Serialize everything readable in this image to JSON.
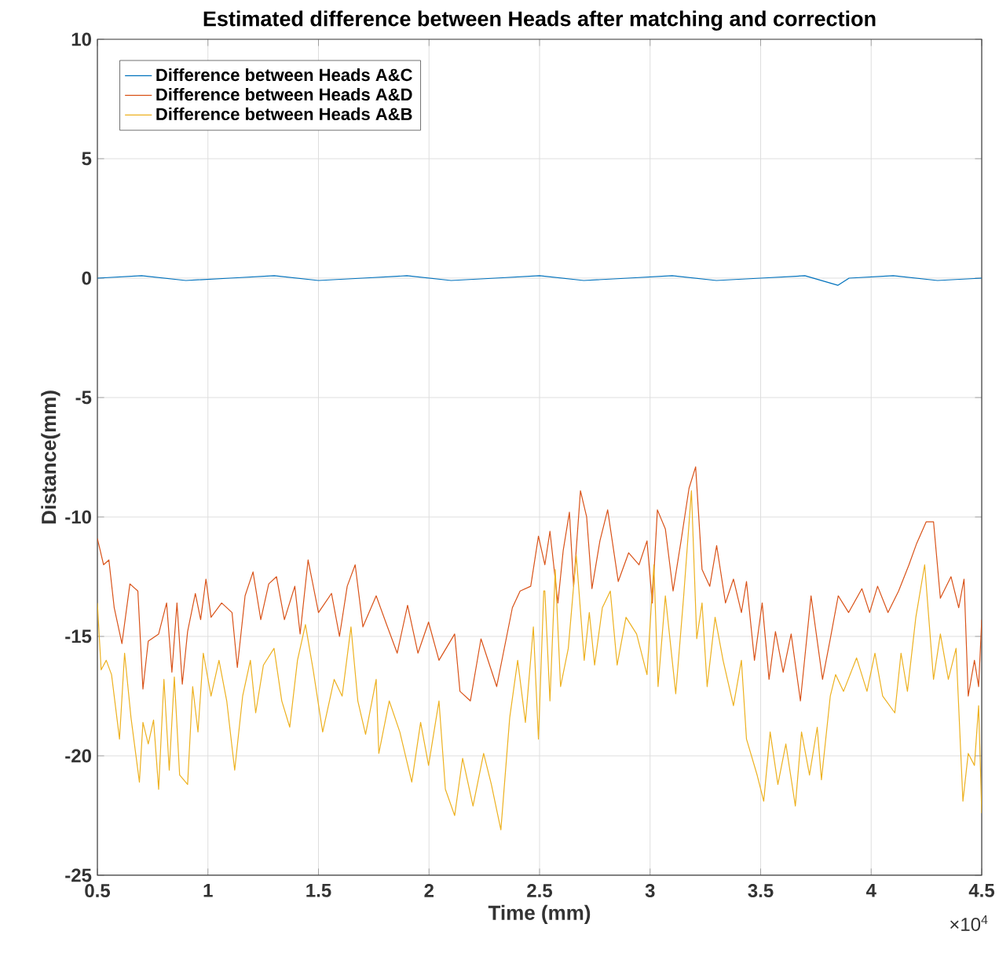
{
  "chart_data": {
    "type": "line",
    "title": "Estimated difference between Heads after matching and correction",
    "xlabel": "Time (mm)",
    "ylabel": "Distance(mm)",
    "xlim": [
      0.5,
      4.5
    ],
    "ylim": [
      -25,
      10
    ],
    "xticks": [
      0.5,
      1,
      1.5,
      2,
      2.5,
      3,
      3.5,
      4,
      4.5
    ],
    "yticks": [
      -25,
      -20,
      -15,
      -10,
      -5,
      0,
      5,
      10
    ],
    "annotations": [
      "×10$^{4}$"
    ],
    "grid": true,
    "legend": "top left",
    "marker": "none",
    "line_style": "solid",
    "series": [
      {
        "name": "Difference between Heads A&C",
        "color": "#0072bd",
        "x": [
          0.5,
          0.7,
          0.9,
          1.1,
          1.3,
          1.5,
          1.7,
          1.9,
          2.1,
          2.3,
          2.5,
          2.7,
          2.9,
          3.1,
          3.3,
          3.5,
          3.7,
          3.85,
          3.9,
          4.1,
          4.3,
          4.5
        ],
        "values": [
          0.0,
          0.1,
          -0.1,
          0.0,
          0.1,
          -0.1,
          0.0,
          0.1,
          -0.1,
          0.0,
          0.1,
          -0.1,
          0.0,
          0.1,
          -0.1,
          0.0,
          0.1,
          -0.3,
          0.0,
          0.1,
          -0.1,
          0.0
        ]
      },
      {
        "name": "Difference between Heads A&D",
        "color": "#d95319",
        "x": [
          0.5,
          0.528,
          0.552,
          0.576,
          0.611,
          0.647,
          0.683,
          0.706,
          0.73,
          0.777,
          0.813,
          0.837,
          0.86,
          0.884,
          0.908,
          0.943,
          0.967,
          0.991,
          1.014,
          1.062,
          1.109,
          1.133,
          1.168,
          1.204,
          1.239,
          1.275,
          1.31,
          1.346,
          1.393,
          1.417,
          1.453,
          1.5,
          1.559,
          1.595,
          1.63,
          1.666,
          1.701,
          1.761,
          1.808,
          1.856,
          1.903,
          1.95,
          1.998,
          2.045,
          2.116,
          2.14,
          2.187,
          2.235,
          2.306,
          2.377,
          2.412,
          2.46,
          2.495,
          2.519,
          2.524,
          2.547,
          2.583,
          2.607,
          2.635,
          2.654,
          2.685,
          2.713,
          2.737,
          2.773,
          2.808,
          2.856,
          2.903,
          2.95,
          2.986,
          3.01,
          3.033,
          3.069,
          3.104,
          3.14,
          3.176,
          3.206,
          3.235,
          3.27,
          3.301,
          3.341,
          3.377,
          3.413,
          3.436,
          3.472,
          3.507,
          3.538,
          3.567,
          3.602,
          3.638,
          3.68,
          3.728,
          3.78,
          3.815,
          3.851,
          3.898,
          3.958,
          3.993,
          4.029,
          4.076,
          4.124,
          4.171,
          4.206,
          4.249,
          4.282,
          4.313,
          4.361,
          4.396,
          4.42,
          4.439,
          4.467,
          4.486,
          4.5
        ],
        "values": [
          -10.9,
          -12.0,
          -11.8,
          -13.8,
          -15.3,
          -12.8,
          -13.1,
          -17.2,
          -15.2,
          -14.9,
          -13.6,
          -16.5,
          -13.6,
          -17.0,
          -14.8,
          -13.2,
          -14.3,
          -12.6,
          -14.2,
          -13.6,
          -14.0,
          -16.3,
          -13.3,
          -12.3,
          -14.3,
          -12.8,
          -12.5,
          -14.3,
          -12.9,
          -14.9,
          -11.8,
          -14.0,
          -13.2,
          -15.0,
          -12.9,
          -12.0,
          -14.6,
          -13.3,
          -14.5,
          -15.7,
          -13.7,
          -15.7,
          -14.4,
          -16.0,
          -14.9,
          -17.3,
          -17.7,
          -15.1,
          -17.1,
          -13.8,
          -13.1,
          -12.9,
          -10.8,
          -11.8,
          -12.0,
          -10.6,
          -13.6,
          -11.4,
          -9.8,
          -12.9,
          -8.9,
          -10.0,
          -13.0,
          -11.0,
          -9.7,
          -12.7,
          -11.5,
          -12.0,
          -11.0,
          -13.6,
          -9.7,
          -10.5,
          -13.1,
          -11.0,
          -8.8,
          -7.9,
          -12.2,
          -12.9,
          -11.2,
          -13.6,
          -12.6,
          -14.0,
          -12.7,
          -16.0,
          -13.6,
          -16.8,
          -14.8,
          -16.5,
          -14.9,
          -17.7,
          -13.3,
          -16.8,
          -15.1,
          -13.3,
          -14.0,
          -13.0,
          -14.0,
          -12.9,
          -14.0,
          -13.1,
          -12.0,
          -11.1,
          -10.2,
          -10.2,
          -13.4,
          -12.5,
          -13.8,
          -12.6,
          -17.5,
          -16.0,
          -17.1,
          -14.3
        ]
      },
      {
        "name": "Difference between Heads A&B",
        "color": "#edb120",
        "x": [
          0.5,
          0.517,
          0.54,
          0.564,
          0.6,
          0.623,
          0.652,
          0.69,
          0.706,
          0.73,
          0.754,
          0.777,
          0.801,
          0.825,
          0.848,
          0.872,
          0.908,
          0.931,
          0.955,
          0.979,
          1.014,
          1.05,
          1.085,
          1.121,
          1.157,
          1.192,
          1.216,
          1.251,
          1.299,
          1.334,
          1.37,
          1.405,
          1.441,
          1.476,
          1.519,
          1.571,
          1.607,
          1.647,
          1.678,
          1.713,
          1.761,
          1.773,
          1.82,
          1.868,
          1.922,
          1.962,
          1.998,
          2.045,
          2.074,
          2.116,
          2.152,
          2.199,
          2.247,
          2.282,
          2.325,
          2.365,
          2.401,
          2.436,
          2.472,
          2.495,
          2.519,
          2.524,
          2.547,
          2.571,
          2.595,
          2.63,
          2.666,
          2.702,
          2.725,
          2.749,
          2.784,
          2.82,
          2.851,
          2.891,
          2.939,
          2.986,
          3.017,
          3.036,
          3.069,
          3.116,
          3.152,
          3.187,
          3.211,
          3.235,
          3.258,
          3.294,
          3.33,
          3.377,
          3.413,
          3.436,
          3.484,
          3.514,
          3.543,
          3.578,
          3.614,
          3.657,
          3.685,
          3.721,
          3.756,
          3.775,
          3.815,
          3.839,
          3.875,
          3.934,
          3.981,
          4.017,
          4.052,
          4.107,
          4.135,
          4.164,
          4.202,
          4.242,
          4.282,
          4.313,
          4.349,
          4.384,
          4.415,
          4.439,
          4.467,
          4.486,
          4.5
        ],
        "values": [
          -13.6,
          -16.4,
          -16.0,
          -16.6,
          -19.3,
          -15.7,
          -18.4,
          -21.1,
          -18.6,
          -19.5,
          -18.5,
          -21.4,
          -16.8,
          -20.6,
          -16.7,
          -20.8,
          -21.2,
          -17.1,
          -19.0,
          -15.7,
          -17.5,
          -16.0,
          -17.7,
          -20.6,
          -17.5,
          -16.0,
          -18.2,
          -16.2,
          -15.5,
          -17.7,
          -18.8,
          -16.0,
          -14.5,
          -16.4,
          -19.0,
          -16.8,
          -17.5,
          -14.6,
          -17.7,
          -19.1,
          -16.8,
          -19.9,
          -17.7,
          -19.0,
          -21.1,
          -18.6,
          -20.4,
          -17.7,
          -21.4,
          -22.5,
          -20.1,
          -22.1,
          -19.9,
          -21.2,
          -23.1,
          -18.4,
          -16.0,
          -18.6,
          -14.6,
          -19.3,
          -13.1,
          -13.1,
          -17.7,
          -12.2,
          -17.1,
          -15.5,
          -11.6,
          -16.0,
          -14.0,
          -16.2,
          -13.8,
          -13.1,
          -16.2,
          -14.2,
          -14.9,
          -16.6,
          -12.0,
          -17.1,
          -13.3,
          -17.4,
          -13.3,
          -8.9,
          -15.1,
          -13.6,
          -17.1,
          -14.2,
          -16.0,
          -17.9,
          -16.0,
          -19.3,
          -20.8,
          -21.9,
          -19.0,
          -21.2,
          -19.5,
          -22.1,
          -19.0,
          -20.8,
          -18.8,
          -21.0,
          -17.5,
          -16.6,
          -17.3,
          -15.9,
          -17.3,
          -15.7,
          -17.5,
          -18.2,
          -15.7,
          -17.3,
          -14.2,
          -12.0,
          -16.8,
          -14.9,
          -16.8,
          -15.5,
          -21.9,
          -19.9,
          -20.4,
          -17.9,
          -22.4
        ]
      }
    ]
  }
}
